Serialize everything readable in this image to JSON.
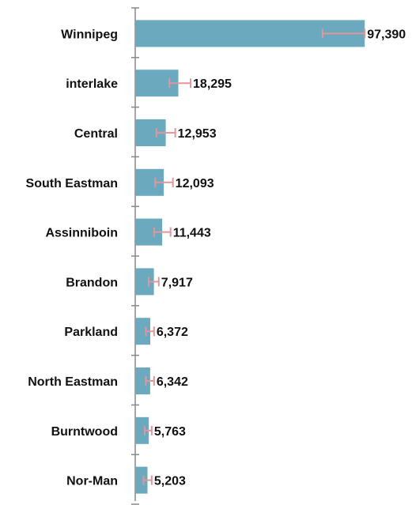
{
  "chart_data": {
    "type": "bar",
    "orientation": "horizontal",
    "title": "",
    "xlabel": "",
    "ylabel": "",
    "grid": false,
    "xlim": [
      0,
      100000
    ],
    "categories": [
      "Winnipeg",
      "interlake",
      "Central",
      "South Eastman",
      "Assinniboin",
      "Brandon",
      "Parkland",
      "North Eastman",
      "Burntwood",
      "Nor-Man"
    ],
    "values": [
      97390,
      18295,
      12953,
      12093,
      11443,
      7917,
      6372,
      6342,
      5763,
      5203
    ],
    "value_labels": [
      "97,390",
      "18,295",
      "12,953",
      "12,093",
      "11,443",
      "7,917",
      "6,372",
      "6,342",
      "5,763",
      "5,203"
    ],
    "error_bars": [
      {
        "low": 79500,
        "high": 97390
      },
      {
        "low": 14500,
        "high": 23500
      },
      {
        "low": 9000,
        "high": 17000
      },
      {
        "low": 8500,
        "high": 16000
      },
      {
        "low": 8000,
        "high": 15000
      },
      {
        "low": 5700,
        "high": 10000
      },
      {
        "low": 4500,
        "high": 8000
      },
      {
        "low": 4500,
        "high": 8000
      },
      {
        "low": 4000,
        "high": 7000
      },
      {
        "low": 3500,
        "high": 7000
      }
    ],
    "colors": {
      "bar": "#6aa9be",
      "error_bar": "#e0979c",
      "axis": "#888888",
      "text": "#111111"
    }
  }
}
